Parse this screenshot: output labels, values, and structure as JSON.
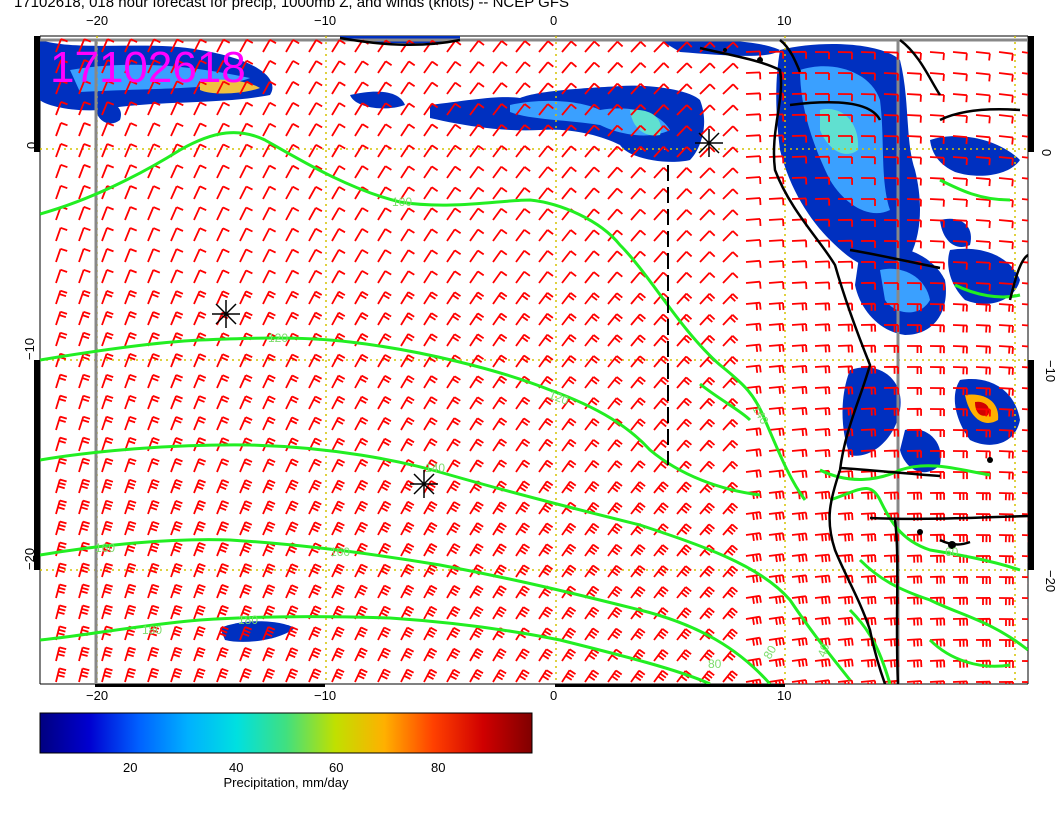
{
  "title": "17102618, 018 hour forecast for precip, 1000mb Z, and winds (knots) -- NCEP GFS",
  "stamp": "17102618",
  "lon_ticks_top": [
    "−20",
    "−10",
    "0",
    "10"
  ],
  "lon_ticks_bottom": [
    "−20",
    "−10",
    "0",
    "10"
  ],
  "lat_ticks_left": [
    "0",
    "−10",
    "−20"
  ],
  "lat_ticks_right": [
    "0",
    "−10",
    "−20"
  ],
  "contour_labels": [
    "100",
    "120",
    "120",
    "140",
    "140",
    "160",
    "160",
    "180",
    "180",
    "40",
    "60",
    "80",
    "80"
  ],
  "colorbar": {
    "label": "Precipitation, mm/day",
    "ticks": [
      "20",
      "40",
      "60",
      "80"
    ],
    "colors": [
      "#000080",
      "#0000d0",
      "#0060ff",
      "#00b0ff",
      "#00e0e0",
      "#40e080",
      "#c0e000",
      "#ffb000",
      "#ff4000",
      "#d00000",
      "#800000"
    ]
  },
  "colors": {
    "barb": "#ff0000",
    "contour": "#22ee22",
    "coast": "#000000",
    "grid": "#d4c200",
    "frame": "#888888"
  }
}
